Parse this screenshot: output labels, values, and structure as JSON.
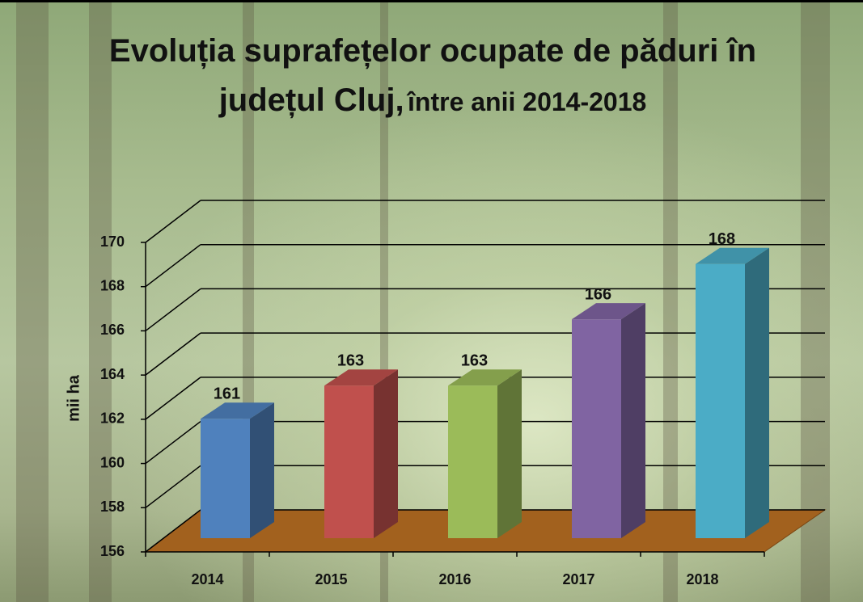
{
  "chart_data": {
    "type": "bar3d",
    "title": {
      "main": "Evoluția suprafețelor ocupate de păduri în județul Cluj,",
      "rest": "între anii 2014-2018"
    },
    "y_label": "mii ha",
    "categories": [
      "2014",
      "2015",
      "2016",
      "2017",
      "2018"
    ],
    "values": [
      161.4,
      162.9,
      162.9,
      165.9,
      168.4
    ],
    "value_labels": [
      "161",
      "163",
      "163",
      "166",
      "168"
    ],
    "colors": [
      "#4f81bd",
      "#c0504d",
      "#9bbb59",
      "#8064a2",
      "#4bacc6"
    ],
    "ylim": [
      156,
      170
    ],
    "yticks": [
      156,
      158,
      160,
      162,
      164,
      166,
      168,
      170
    ],
    "grid": true
  }
}
